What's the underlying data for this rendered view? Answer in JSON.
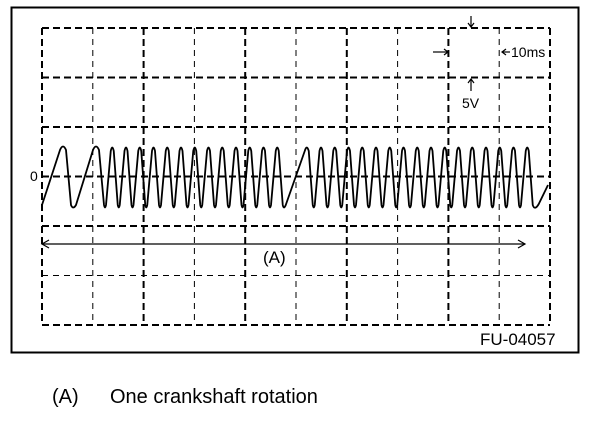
{
  "figure": {
    "zero_label": "0",
    "time_scale_label": "10ms",
    "volt_scale_label": "5V",
    "range_label": "(A)",
    "figure_id": "FU-04057"
  },
  "caption": {
    "key": "(A)",
    "text": "One crankshaft rotation"
  },
  "colors": {
    "line": "#000000",
    "background": "#ffffff"
  }
}
